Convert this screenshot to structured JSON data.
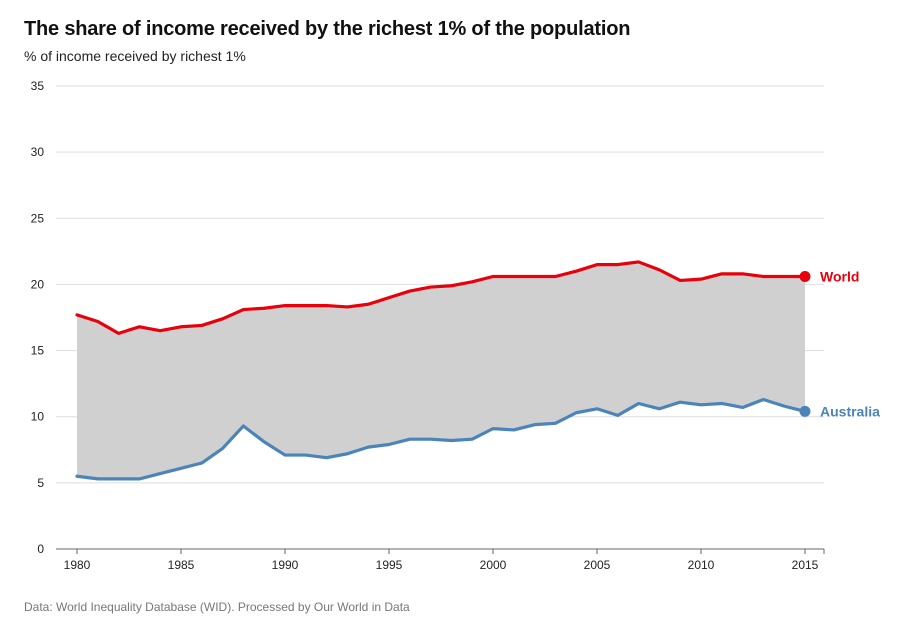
{
  "chart_data": {
    "type": "line",
    "title": "The share of income received by the richest 1% of the population",
    "subtitle": "% of income received by richest 1%",
    "source": "Data: World Inequality Database (WID). Processed by Our World in Data",
    "x": [
      1980,
      1981,
      1982,
      1983,
      1984,
      1985,
      1986,
      1987,
      1988,
      1989,
      1990,
      1991,
      1992,
      1993,
      1994,
      1995,
      1996,
      1997,
      1998,
      1999,
      2000,
      2001,
      2002,
      2003,
      2004,
      2005,
      2006,
      2007,
      2008,
      2009,
      2010,
      2011,
      2012,
      2013,
      2014,
      2015
    ],
    "xticks": [
      "1980",
      "1985",
      "1990",
      "1995",
      "2000",
      "2005",
      "2010",
      "2015"
    ],
    "yticks": [
      "0",
      "5",
      "10",
      "15",
      "20",
      "25",
      "30",
      "35"
    ],
    "xlim": [
      1980,
      2015
    ],
    "ylim": [
      0,
      35
    ],
    "grid": true,
    "legend": "inline-right",
    "fill_between": true,
    "series": [
      {
        "name": "World",
        "color": "#e8000b",
        "values": [
          17.7,
          17.2,
          16.3,
          16.8,
          16.5,
          16.8,
          16.9,
          17.4,
          18.1,
          18.2,
          18.4,
          18.4,
          18.4,
          18.3,
          18.5,
          19.0,
          19.5,
          19.8,
          19.9,
          20.2,
          20.6,
          20.6,
          20.6,
          20.6,
          21.0,
          21.5,
          21.5,
          21.7,
          21.1,
          20.3,
          20.4,
          20.8,
          20.8,
          20.6,
          20.6,
          20.6
        ]
      },
      {
        "name": "Australia",
        "color": "#4a84ba",
        "values": [
          5.5,
          5.3,
          5.3,
          5.3,
          5.7,
          6.1,
          6.5,
          7.6,
          9.3,
          8.1,
          7.1,
          7.1,
          6.9,
          7.2,
          7.7,
          7.9,
          8.3,
          8.3,
          8.2,
          8.3,
          9.1,
          9.0,
          9.4,
          9.5,
          10.3,
          10.6,
          10.1,
          11.0,
          10.6,
          11.1,
          10.9,
          11.0,
          10.7,
          11.3,
          10.8,
          10.4
        ]
      }
    ]
  }
}
